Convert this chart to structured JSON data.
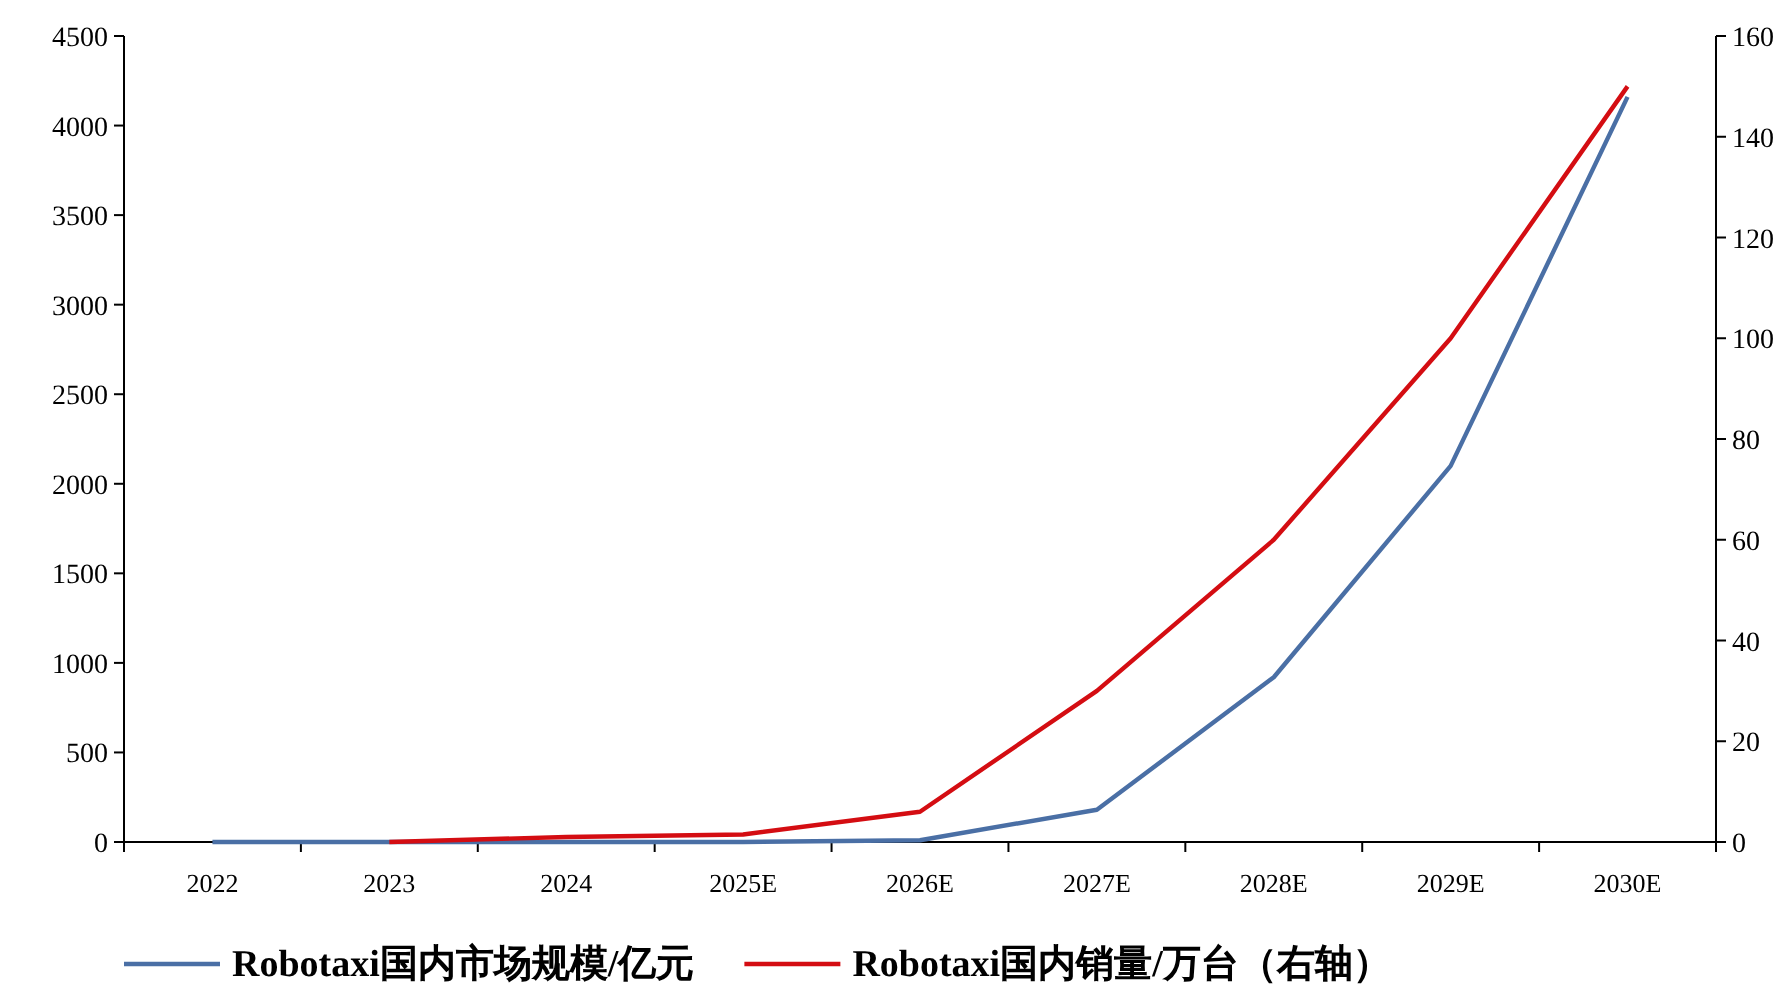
{
  "chart_data": {
    "type": "line",
    "categories": [
      "2022",
      "2023",
      "2024",
      "2025E",
      "2026E",
      "2027E",
      "2028E",
      "2029E",
      "2030E"
    ],
    "series": [
      {
        "name": "Robotaxi国内市场规模/亿元",
        "color": "#4a6fa5",
        "values": [
          0,
          0,
          0,
          0,
          10,
          180,
          920,
          2100,
          4160
        ]
      },
      {
        "name": "Robotaxi国内销量/万台（右轴）",
        "color": "#d40d12",
        "axis": "y2",
        "values": [
          null,
          0,
          1,
          1.5,
          6,
          30,
          60,
          100,
          150
        ]
      }
    ],
    "ylim": [
      0,
      4500
    ],
    "yticks": [
      0,
      500,
      1000,
      1500,
      2000,
      2500,
      3000,
      3500,
      4000,
      4500
    ],
    "y2lim": [
      0,
      160
    ],
    "y2ticks": [
      0,
      20,
      40,
      60,
      80,
      100,
      120,
      140,
      160
    ],
    "legend": "bottom"
  }
}
